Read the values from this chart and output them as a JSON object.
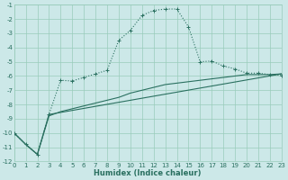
{
  "xlabel": "Humidex (Indice chaleur)",
  "bg_color": "#cce8e8",
  "grid_color": "#99ccbb",
  "line_color": "#2a7060",
  "xlim": [
    0,
    23
  ],
  "ylim": [
    -12,
    -1
  ],
  "yticks": [
    -12,
    -11,
    -10,
    -9,
    -8,
    -7,
    -6,
    -5,
    -4,
    -3,
    -2,
    -1
  ],
  "xticks": [
    0,
    1,
    2,
    3,
    4,
    5,
    6,
    7,
    8,
    9,
    10,
    11,
    12,
    13,
    14,
    15,
    16,
    17,
    18,
    19,
    20,
    21,
    22,
    23
  ],
  "line1_x": [
    0,
    1,
    2,
    3,
    4,
    5,
    6,
    7,
    8,
    9,
    10,
    11,
    12,
    13,
    14,
    15,
    16,
    17,
    18,
    19,
    20,
    21,
    22,
    23
  ],
  "line1_y": [
    -10.0,
    -10.8,
    -11.5,
    -8.7,
    -6.3,
    -6.35,
    -6.1,
    -5.85,
    -5.6,
    -3.5,
    -2.8,
    -1.75,
    -1.4,
    -1.3,
    -1.3,
    -2.55,
    -5.0,
    -4.95,
    -5.3,
    -5.5,
    -5.8,
    -5.8,
    -5.9,
    -5.95
  ],
  "line2_x": [
    0,
    1,
    2,
    3,
    4,
    5,
    6,
    7,
    8,
    9,
    10,
    11,
    12,
    13,
    14,
    15,
    16,
    17,
    18,
    19,
    20,
    21,
    22,
    23
  ],
  "line2_y": [
    -10.0,
    -10.8,
    -11.5,
    -8.8,
    -8.5,
    -8.3,
    -8.1,
    -7.9,
    -7.7,
    -7.5,
    -7.2,
    -7.0,
    -6.8,
    -6.6,
    -6.5,
    -6.4,
    -6.3,
    -6.2,
    -6.1,
    -6.0,
    -5.9,
    -5.9,
    -5.9,
    -5.85
  ],
  "line3_x": [
    0,
    1,
    2,
    3,
    23
  ],
  "line3_y": [
    -10.0,
    -10.8,
    -11.5,
    -8.7,
    -5.85
  ]
}
